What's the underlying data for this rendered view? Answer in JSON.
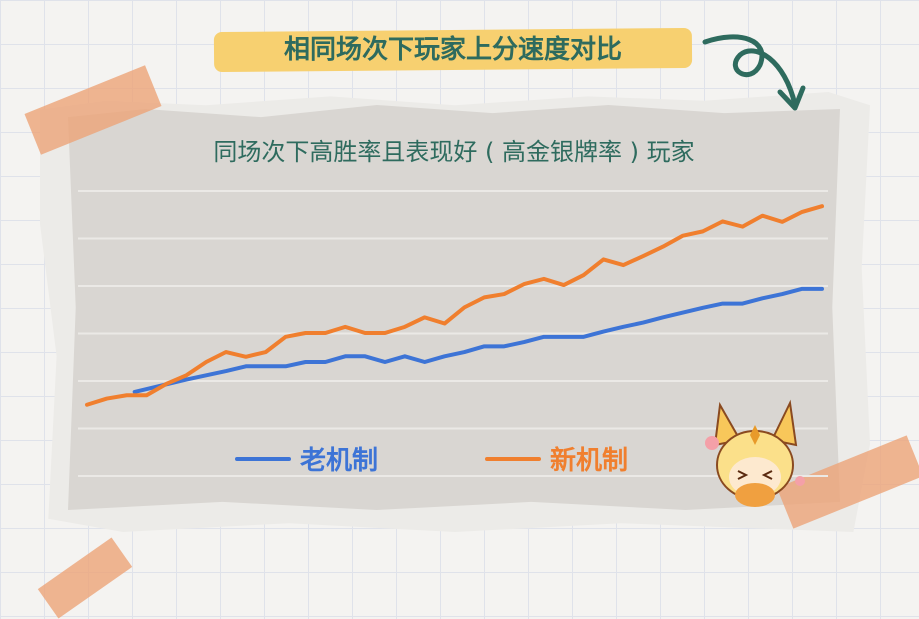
{
  "header": {
    "title": "相同场次下玩家上分速度对比"
  },
  "chart_data": {
    "type": "line",
    "title": "同场次下高胜率且表现好 ( 高金银牌率 ) 玩家",
    "xlabel": "",
    "ylabel": "",
    "ylim": [
      0,
      6
    ],
    "xlim": [
      0,
      37
    ],
    "grid": true,
    "gridlines": [
      0,
      1,
      2,
      3,
      4,
      5,
      6
    ],
    "legend_position": "bottom-center",
    "series": [
      {
        "name": "老机制",
        "color": "#3d74d6",
        "x": [
          2.4,
          4,
          5,
          6,
          7,
          8,
          9,
          10,
          11,
          12,
          13,
          14,
          15,
          16,
          17,
          18,
          19,
          20,
          21,
          22,
          23,
          24,
          25,
          26,
          27,
          28,
          29,
          30,
          31,
          32,
          33,
          34,
          35,
          36,
          37
        ],
        "values": [
          1.77,
          1.93,
          2.03,
          2.12,
          2.21,
          2.31,
          2.31,
          2.31,
          2.4,
          2.4,
          2.52,
          2.52,
          2.4,
          2.52,
          2.4,
          2.52,
          2.61,
          2.73,
          2.73,
          2.82,
          2.93,
          2.93,
          2.93,
          3.04,
          3.14,
          3.23,
          3.34,
          3.44,
          3.54,
          3.63,
          3.63,
          3.74,
          3.83,
          3.94,
          3.94
        ]
      },
      {
        "name": "新机制",
        "color": "#f07f2e",
        "x": [
          0,
          1,
          2,
          3,
          4,
          5,
          6,
          7,
          8,
          9,
          10,
          11,
          12,
          13,
          14,
          15,
          16,
          17,
          18,
          19,
          20,
          21,
          22,
          23,
          24,
          25,
          26,
          27,
          28,
          29,
          30,
          31,
          32,
          33,
          34,
          35,
          36,
          37
        ],
        "values": [
          1.5,
          1.63,
          1.7,
          1.7,
          1.94,
          2.12,
          2.4,
          2.61,
          2.51,
          2.61,
          2.93,
          3.01,
          3.01,
          3.14,
          3.01,
          3.01,
          3.14,
          3.34,
          3.21,
          3.55,
          3.76,
          3.83,
          4.04,
          4.15,
          4.02,
          4.23,
          4.56,
          4.44,
          4.63,
          4.83,
          5.06,
          5.15,
          5.36,
          5.25,
          5.48,
          5.35,
          5.56,
          5.68
        ]
      }
    ]
  }
}
